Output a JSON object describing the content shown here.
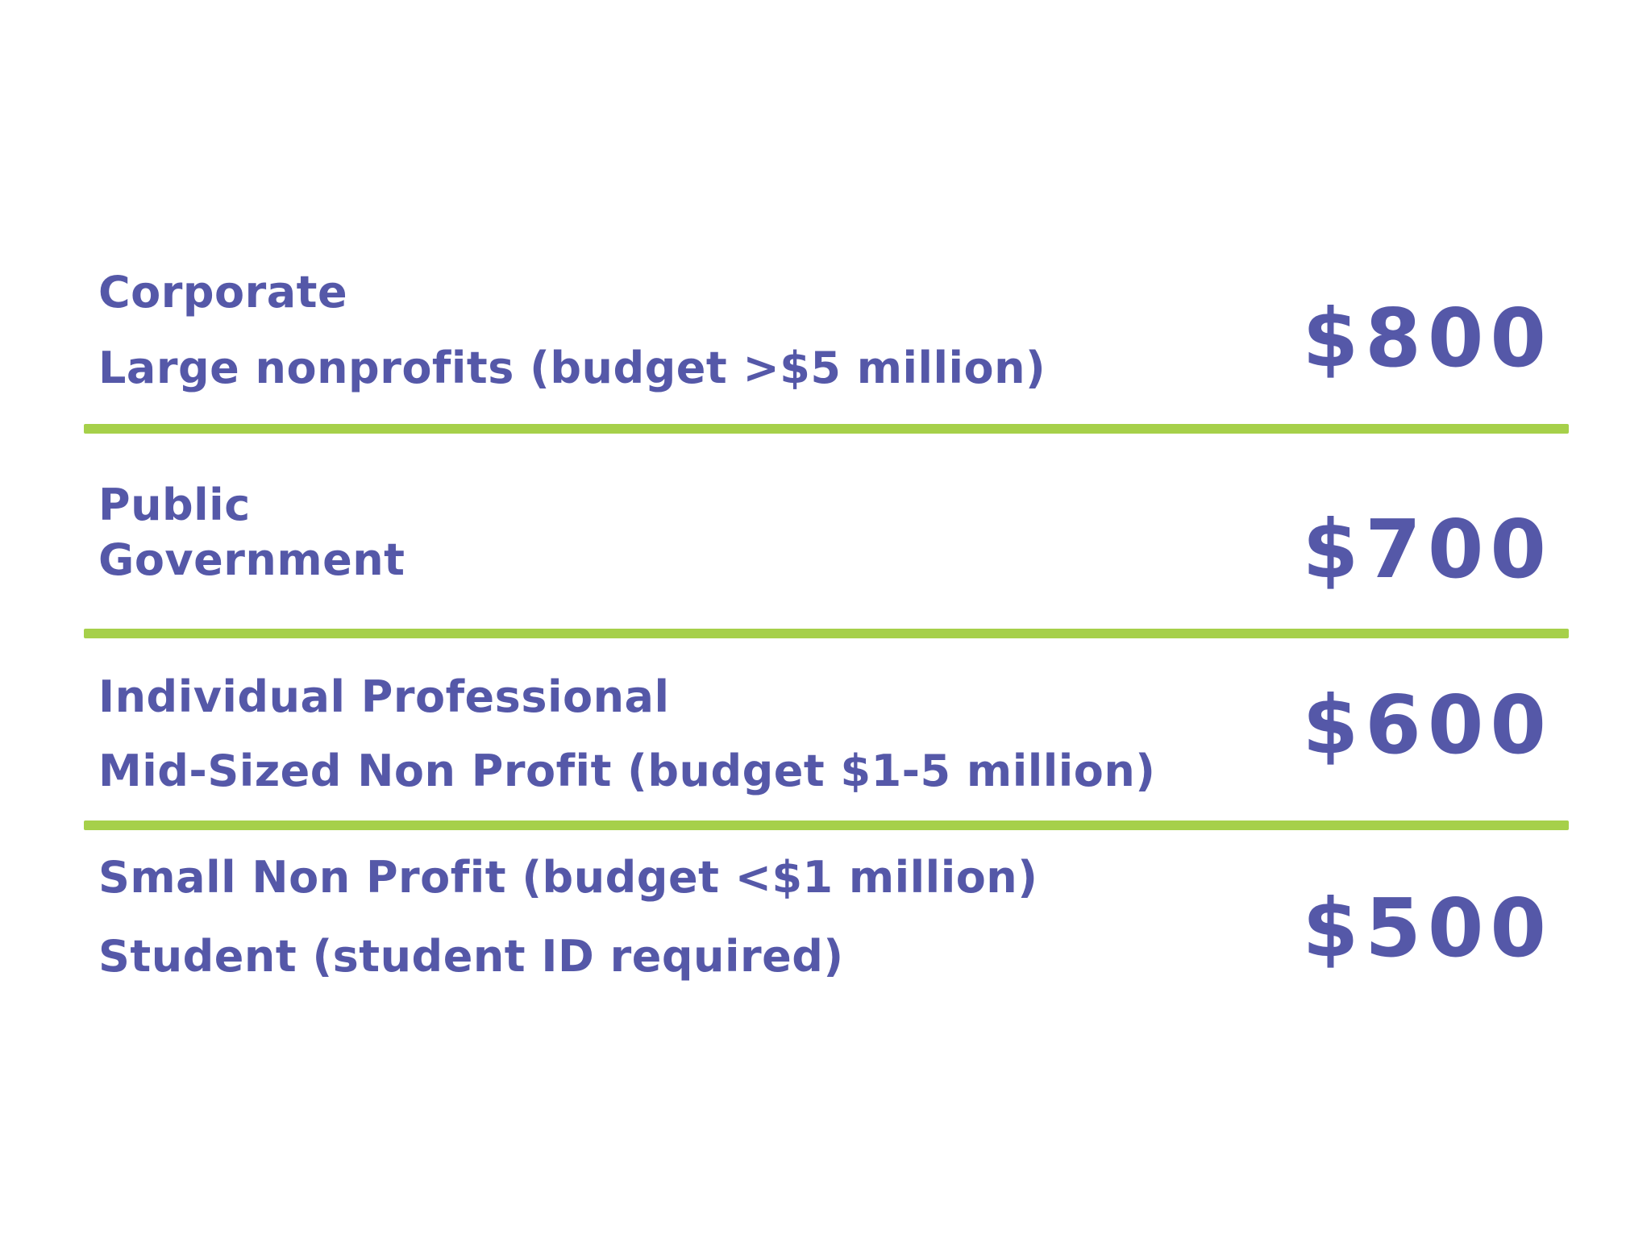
{
  "tiers": [
    {
      "lines": [
        "Corporate",
        "Large nonprofits (budget >$5 million)"
      ],
      "price": "$800"
    },
    {
      "lines": [
        "Public",
        "Government"
      ],
      "price": "$700"
    },
    {
      "lines": [
        "Individual Professional",
        "Mid-Sized Non Profit (budget $1-5 million)"
      ],
      "price": "$600"
    },
    {
      "lines": [
        "Small Non Profit (budget <$1 million)",
        "Student (student ID required)"
      ],
      "price": "$500"
    }
  ],
  "colors": {
    "text": "#5558a8",
    "divider": "#a6d04a",
    "background": "#ffffff"
  }
}
